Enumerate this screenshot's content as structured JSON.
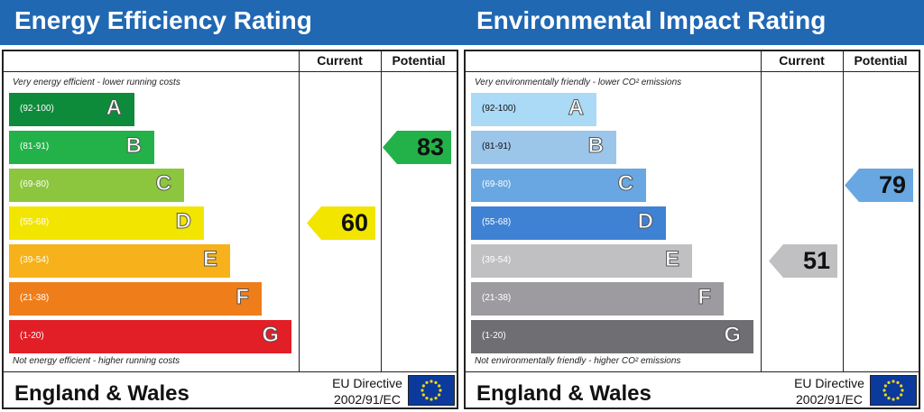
{
  "chart_data": [
    {
      "type": "bar",
      "title": "Energy Efficiency Rating",
      "columns": [
        "Current",
        "Potential"
      ],
      "top_caption": "Very energy efficient - lower running costs",
      "bottom_caption": "Not energy efficient - higher running costs",
      "bands": [
        {
          "letter": "A",
          "range": "(92-100)",
          "color": "#0e8a3b"
        },
        {
          "letter": "B",
          "range": "(81-91)",
          "color": "#23b24a"
        },
        {
          "letter": "C",
          "range": "(69-80)",
          "color": "#8cc63f"
        },
        {
          "letter": "D",
          "range": "(55-68)",
          "color": "#f2e500"
        },
        {
          "letter": "E",
          "range": "(39-54)",
          "color": "#f7b11a"
        },
        {
          "letter": "F",
          "range": "(21-38)",
          "color": "#ef7d1a"
        },
        {
          "letter": "G",
          "range": "(1-20)",
          "color": "#e21e26"
        }
      ],
      "current": {
        "value": "60",
        "band": "D",
        "color": "#f2e500"
      },
      "potential": {
        "value": "83",
        "band": "B",
        "color": "#23b24a"
      },
      "footer_country": "England & Wales",
      "footer_directive_line1": "EU Directive",
      "footer_directive_line2": "2002/91/EC"
    },
    {
      "type": "bar",
      "title": "Environmental Impact Rating",
      "columns": [
        "Current",
        "Potential"
      ],
      "top_caption": "Very environmentally friendly - lower CO² emissions",
      "bottom_caption": "Not environmentally friendly - higher CO² emissions",
      "bands": [
        {
          "letter": "A",
          "range": "(92-100)",
          "color": "#aadaf5"
        },
        {
          "letter": "B",
          "range": "(81-91)",
          "color": "#9cc5ea"
        },
        {
          "letter": "C",
          "range": "(69-80)",
          "color": "#68a7e1"
        },
        {
          "letter": "D",
          "range": "(55-68)",
          "color": "#3f82d4"
        },
        {
          "letter": "E",
          "range": "(39-54)",
          "color": "#c0c0c2"
        },
        {
          "letter": "F",
          "range": "(21-38)",
          "color": "#9d9b9f"
        },
        {
          "letter": "G",
          "range": "(1-20)",
          "color": "#6f6e72"
        }
      ],
      "current": {
        "value": "51",
        "band": "E",
        "color": "#c0c0c2"
      },
      "potential": {
        "value": "79",
        "band": "C",
        "color": "#68a7e1"
      },
      "footer_country": "England & Wales",
      "footer_directive_line1": "EU Directive",
      "footer_directive_line2": "2002/91/EC"
    }
  ]
}
